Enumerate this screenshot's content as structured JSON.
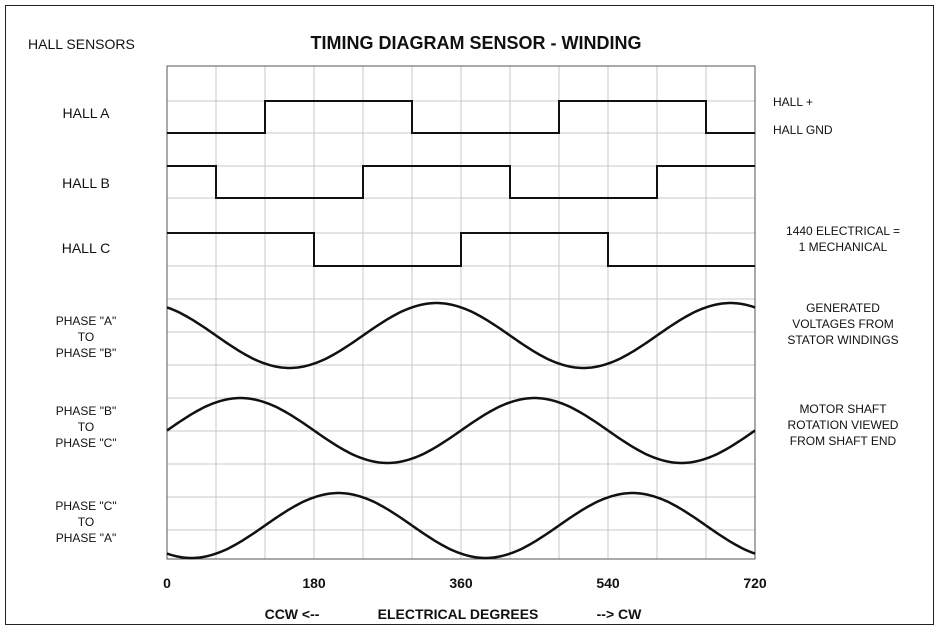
{
  "header": {
    "left_label": "HALL SENSORS",
    "title": "TIMING DIAGRAM SENSOR - WINDING"
  },
  "rows": [
    {
      "lines": [
        "HALL A"
      ]
    },
    {
      "lines": [
        "HALL B"
      ]
    },
    {
      "lines": [
        "HALL C"
      ]
    },
    {
      "lines": [
        "PHASE \"A\"",
        "TO",
        "PHASE \"B\""
      ]
    },
    {
      "lines": [
        "PHASE \"B\"",
        "TO",
        "PHASE \"C\""
      ]
    },
    {
      "lines": [
        "PHASE \"C\"",
        "TO",
        "PHASE \"A\""
      ]
    }
  ],
  "right_notes": {
    "hall_plus": "HALL +",
    "hall_gnd": "HALL GND",
    "electrical": [
      "1440 ELECTRICAL =",
      "1 MECHANICAL"
    ],
    "generated": [
      "GENERATED",
      "VOLTAGES FROM",
      "STATOR WINDINGS"
    ],
    "rotation": [
      "MOTOR SHAFT",
      "ROTATION VIEWED",
      "FROM SHAFT END"
    ]
  },
  "x_axis": {
    "ticks": [
      "0",
      "180",
      "360",
      "540",
      "720"
    ],
    "range": [
      0,
      720
    ],
    "ccw": "CCW <--",
    "label": "ELECTRICAL DEGREES",
    "cw": "--> CW"
  },
  "signals": {
    "hall_a": [
      {
        "deg": 0,
        "level": 0
      },
      {
        "deg": 120,
        "level": 1
      },
      {
        "deg": 300,
        "level": 0
      },
      {
        "deg": 480,
        "level": 1
      },
      {
        "deg": 660,
        "level": 0
      }
    ],
    "hall_b": [
      {
        "deg": 0,
        "level": 1
      },
      {
        "deg": 60,
        "level": 0
      },
      {
        "deg": 240,
        "level": 1
      },
      {
        "deg": 420,
        "level": 0
      },
      {
        "deg": 600,
        "level": 1
      }
    ],
    "hall_c": [
      {
        "deg": 0,
        "level": 1
      },
      {
        "deg": 180,
        "level": 0
      },
      {
        "deg": 360,
        "level": 1
      },
      {
        "deg": 540,
        "level": 0
      }
    ],
    "phase_ab_peak_deg": [
      330,
      690
    ],
    "phase_bc_peak_deg": [
      90,
      450
    ],
    "phase_ca_peak_deg": [
      210,
      570
    ]
  }
}
